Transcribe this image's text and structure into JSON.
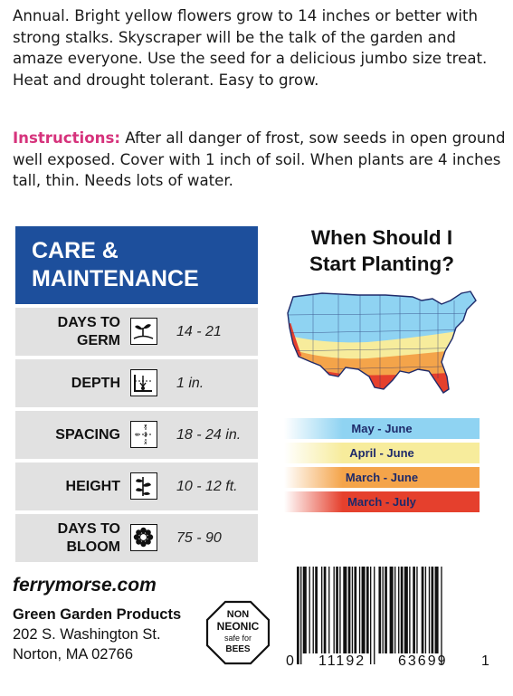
{
  "description": "Annual. Bright yellow flowers grow to 14 inches or better with strong stalks. Skyscraper will be the talk of the garden and amaze everyone. Use the seed for a delicious jumbo size treat. Heat and drought tolerant. Easy to grow.",
  "instructions": {
    "label": "Instructions:",
    "text": " After all danger of frost, sow seeds in open ground well exposed. Cover with 1 inch of soil. When plants are 4 inches tall, thin. Needs lots of water."
  },
  "care": {
    "title_line1": "CARE &",
    "title_line2": "MAINTENANCE",
    "rows": [
      {
        "label": "DAYS TO GERM",
        "icon": "sprout-icon",
        "value": "14 - 21"
      },
      {
        "label": "DEPTH",
        "icon": "depth-icon",
        "value": "1 in."
      },
      {
        "label": "SPACING",
        "icon": "spacing-icon",
        "value": "18 - 24 in."
      },
      {
        "label": "HEIGHT",
        "icon": "plant-height-icon",
        "value": "10 - 12 ft."
      },
      {
        "label_line1": "DAYS TO",
        "label_line2": "BLOOM",
        "icon": "flower-icon",
        "value": "75 - 90"
      }
    ]
  },
  "planting": {
    "title_line1": "When Should I",
    "title_line2": "Start Planting?",
    "zones": [
      {
        "label": "May - June",
        "color": "#8fd3f2"
      },
      {
        "label": "April - June",
        "color": "#f7ec9c"
      },
      {
        "label": "March - June",
        "color": "#f4a44a"
      },
      {
        "label": "March - July",
        "color": "#e5402d"
      }
    ]
  },
  "footer": {
    "website": "ferrymorse.com",
    "company": "Green Garden Products",
    "address1": "202 S. Washington St.",
    "address2": "Norton, MA 02766",
    "badge_line1": "NON",
    "badge_line2": "NEONIC",
    "badge_line3": "safe for",
    "badge_line4": "BEES"
  },
  "barcode": {
    "lead": "0",
    "left_group": "11192",
    "right_group": "63699",
    "check": "1"
  }
}
